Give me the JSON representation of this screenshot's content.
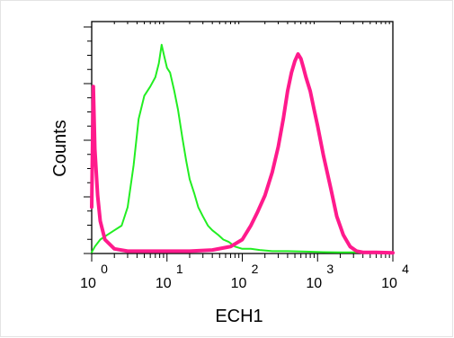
{
  "chart_data": {
    "type": "line",
    "title": "",
    "xlabel": "ECH1",
    "ylabel": "Counts",
    "x_scale": "log",
    "xlim": [
      1,
      10000
    ],
    "ylim": [
      0,
      100
    ],
    "grid": false,
    "legend": "none",
    "x_ticks": [
      {
        "value": 1,
        "base": "10",
        "exp": "0"
      },
      {
        "value": 10,
        "base": "10",
        "exp": "1"
      },
      {
        "value": 100,
        "base": "10",
        "exp": "2"
      },
      {
        "value": 1000,
        "base": "10",
        "exp": "3"
      },
      {
        "value": 10000,
        "base": "10",
        "exp": "4"
      }
    ],
    "series": [
      {
        "color": "#22ee22",
        "x": [
          1,
          1.1,
          1.3,
          1.6,
          2,
          2.5,
          3,
          3.6,
          4.2,
          5,
          6,
          7,
          7.8,
          8.5,
          9.2,
          10,
          11,
          12.5,
          14,
          16,
          18,
          20,
          23,
          26,
          30,
          35,
          40,
          48,
          56,
          66,
          80,
          100,
          130,
          170,
          250,
          400,
          700,
          1200,
          2000,
          3500,
          6000,
          10000
        ],
        "y": [
          0.5,
          3,
          6,
          8,
          10,
          12,
          20,
          38,
          58,
          68,
          72,
          76,
          82,
          90,
          85,
          80,
          78,
          70,
          62,
          50,
          40,
          32,
          26,
          20,
          16,
          12,
          10,
          8,
          6,
          5,
          3,
          2,
          2,
          1.5,
          1,
          1,
          0.8,
          0.6,
          0.5,
          0.5,
          0.4,
          0.3
        ]
      },
      {
        "color": "#ff1a8c",
        "x": [
          1,
          1.05,
          1.1,
          1.2,
          1.3,
          1.5,
          2,
          3,
          5,
          10,
          20,
          40,
          70,
          100,
          130,
          160,
          200,
          250,
          300,
          350,
          400,
          450,
          500,
          550,
          600,
          650,
          700,
          800,
          900,
          1000,
          1200,
          1500,
          1800,
          2200,
          2700,
          3300,
          4000,
          6000,
          10000
        ],
        "y": [
          20,
          72,
          45,
          25,
          14,
          6,
          2,
          1,
          1,
          1,
          1,
          1.5,
          3,
          6,
          12,
          18,
          25,
          35,
          46,
          58,
          70,
          78,
          83,
          86,
          84,
          80,
          76,
          70,
          62,
          55,
          42,
          28,
          16,
          8,
          3,
          1,
          0.5,
          0.5,
          0.3
        ]
      }
    ]
  }
}
